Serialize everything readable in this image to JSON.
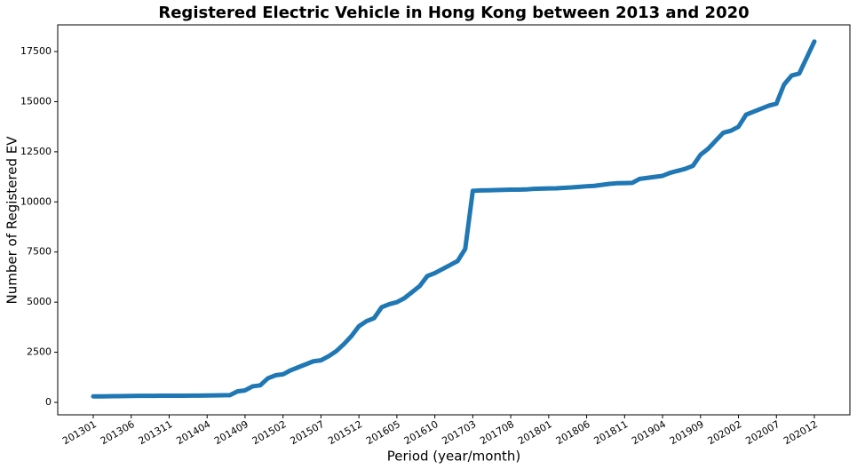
{
  "chart_data": {
    "type": "line",
    "title": "Registered Electric Vehicle in Hong Kong between 2013 and 2020",
    "x_label": "Period (year/month)",
    "y_label": "Number of Registered EV",
    "categories": [
      "201301",
      null,
      null,
      null,
      null,
      "201306",
      null,
      null,
      null,
      null,
      "201311",
      null,
      null,
      null,
      null,
      "201404",
      null,
      null,
      null,
      null,
      "201409",
      null,
      null,
      null,
      null,
      "201502",
      null,
      null,
      null,
      null,
      "201507",
      null,
      null,
      null,
      null,
      "201512",
      null,
      null,
      null,
      null,
      "201605",
      null,
      null,
      null,
      null,
      "201610",
      null,
      null,
      null,
      null,
      "201703",
      null,
      null,
      null,
      null,
      "201708",
      null,
      null,
      null,
      null,
      "201801",
      null,
      null,
      null,
      null,
      "201806",
      null,
      null,
      null,
      null,
      "201811",
      null,
      null,
      null,
      null,
      "201904",
      null,
      null,
      null,
      null,
      "201909",
      null,
      null,
      null,
      null,
      "202002",
      null,
      null,
      null,
      null,
      "202007",
      null,
      null,
      null,
      null,
      "202012"
    ],
    "values": [
      300,
      300,
      305,
      310,
      315,
      320,
      325,
      325,
      325,
      330,
      330,
      330,
      335,
      340,
      340,
      345,
      350,
      355,
      360,
      550,
      600,
      800,
      850,
      1200,
      1350,
      1400,
      1600,
      1750,
      1900,
      2050,
      2100,
      2300,
      2550,
      2900,
      3300,
      3800,
      4050,
      4200,
      4750,
      4900,
      5000,
      5200,
      5500,
      5800,
      6300,
      6450,
      6650,
      6850,
      7050,
      7650,
      10550,
      10570,
      10580,
      10590,
      10600,
      10610,
      10610,
      10620,
      10650,
      10660,
      10670,
      10680,
      10700,
      10720,
      10750,
      10780,
      10800,
      10850,
      10900,
      10930,
      10940,
      10950,
      11150,
      11200,
      11250,
      11300,
      11450,
      11550,
      11650,
      11800,
      12350,
      12650,
      13050,
      13450,
      13550,
      13750,
      14350,
      14500,
      14650,
      14800,
      14900,
      15850,
      16300,
      16400,
      17200,
      18000
    ],
    "color": "#1f77b4",
    "ylim": [
      -620,
      18830
    ],
    "yticks": [
      0,
      2500,
      5000,
      7500,
      10000,
      12500,
      15000,
      17500
    ],
    "grid": false
  }
}
